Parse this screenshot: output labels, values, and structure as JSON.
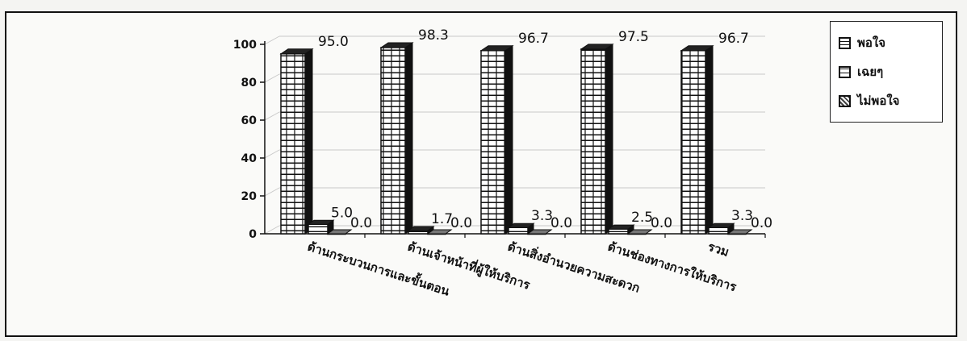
{
  "chart_data": {
    "type": "bar",
    "categories": [
      "ด้านกระบวนการและขั้นตอน",
      "ด้านเจ้าหน้าที่ผู้ให้บริการ",
      "ด้านสิ่งอำนวยความสะดวก",
      "ด้านช่องทางการให้บริการ",
      "รวม"
    ],
    "series": [
      {
        "name": "พอใจ",
        "values": [
          95.0,
          98.3,
          96.7,
          97.5,
          96.7
        ]
      },
      {
        "name": "เฉยๆ",
        "values": [
          5.0,
          1.7,
          3.3,
          2.5,
          3.3
        ]
      },
      {
        "name": "ไม่พอใจ",
        "values": [
          0.0,
          0.0,
          0.0,
          0.0,
          0.0
        ]
      }
    ],
    "value_labels": [
      [
        "95.0",
        "5.0",
        "0.0"
      ],
      [
        "98.3",
        "1.7",
        "0.0"
      ],
      [
        "96.7",
        "3.3",
        "0.0"
      ],
      [
        "97.5",
        "2.5",
        "0.0"
      ],
      [
        "96.7",
        "3.3",
        "0.0"
      ]
    ],
    "y_ticks": [
      "0",
      "20",
      "40",
      "60",
      "80",
      "100"
    ],
    "ylim": [
      0,
      100
    ],
    "grid": true,
    "legend_position": "top-right",
    "title": "",
    "xlabel": "",
    "ylabel": ""
  },
  "colors": {
    "bar_fill": "#ffffff",
    "bar_stroke": "#111111",
    "top_face": "#222222",
    "side_face": "#111111",
    "grid": "#c8c8c8",
    "axis": "#111111"
  },
  "legend": {
    "items": [
      "พอใจ",
      "เฉยๆ",
      "ไม่พอใจ"
    ]
  }
}
